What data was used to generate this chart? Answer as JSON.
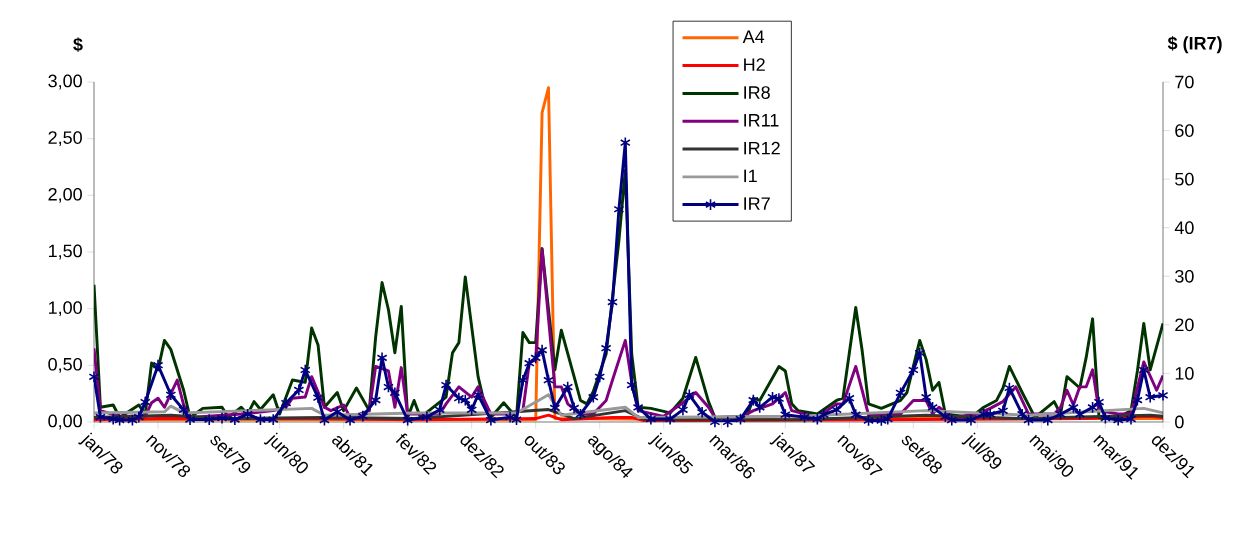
{
  "chart_data": {
    "type": "line",
    "ylabel": "$",
    "y2label": "$ (IR7)",
    "xlim": [
      "1978-01",
      "1991-12"
    ],
    "xticks": [
      {
        "value": "1978-01",
        "label": "jan/78"
      },
      {
        "value": "1978-11",
        "label": "nov/78"
      },
      {
        "value": "1979-09",
        "label": "set/79"
      },
      {
        "value": "1980-06",
        "label": "jun/80"
      },
      {
        "value": "1981-04",
        "label": "abr/81"
      },
      {
        "value": "1982-02",
        "label": "fev/82"
      },
      {
        "value": "1982-12",
        "label": "dez/82"
      },
      {
        "value": "1983-10",
        "label": "out/83"
      },
      {
        "value": "1984-08",
        "label": "ago/84"
      },
      {
        "value": "1985-06",
        "label": "jun/85"
      },
      {
        "value": "1986-03",
        "label": "mar/86"
      },
      {
        "value": "1987-01",
        "label": "jan/87"
      },
      {
        "value": "1987-11",
        "label": "nov/87"
      },
      {
        "value": "1988-09",
        "label": "set/88"
      },
      {
        "value": "1989-07",
        "label": "jul/89"
      },
      {
        "value": "1990-05",
        "label": "mai/90"
      },
      {
        "value": "1991-03",
        "label": "mar/91"
      },
      {
        "value": "1991-12",
        "label": "dez/91"
      }
    ],
    "ylim": [
      0,
      3
    ],
    "yticks": [
      {
        "value": 0,
        "label": "0,00"
      },
      {
        "value": 0.5,
        "label": "0,50"
      },
      {
        "value": 1,
        "label": "1,00"
      },
      {
        "value": 1.5,
        "label": "1,50"
      },
      {
        "value": 2,
        "label": "2,00"
      },
      {
        "value": 2.5,
        "label": "2,50"
      },
      {
        "value": 3,
        "label": "3,00"
      }
    ],
    "y2lim": [
      0,
      70
    ],
    "y2ticks": [
      0,
      10,
      20,
      30,
      40,
      50,
      60,
      70
    ],
    "legend": "top",
    "series": [
      {
        "name": "A4",
        "color": "#ff6600",
        "x": [
          "1978-01",
          "1980-07",
          "1983-01",
          "1983-10",
          "1983-11",
          "1983-12",
          "1984-01",
          "1986-05",
          "1988-11",
          "1991-12"
        ],
        "values": [
          0.02,
          0.02,
          0.02,
          0.02,
          2.73,
          2.95,
          0.03,
          0.02,
          0.03,
          0.03
        ]
      },
      {
        "name": "H2",
        "color": "#ff0000",
        "x": [
          "1978-01",
          "1978-11",
          "1980-11",
          "1982-03",
          "1983-10",
          "1983-12",
          "1984-02",
          "1984-10",
          "1985-01",
          "1985-03",
          "1988-01",
          "1990-12",
          "1991-10",
          "1991-12"
        ],
        "values": [
          0.02,
          0.03,
          0.03,
          0.02,
          0.03,
          0.06,
          0.02,
          0.04,
          0.04,
          0.01,
          0.02,
          0.03,
          0.05,
          0.04
        ]
      },
      {
        "name": "IR8",
        "color": "#003300",
        "x": [
          "1978-01",
          "1978-02",
          "1978-04",
          "1978-05",
          "1978-08",
          "1978-09",
          "1978-10",
          "1978-11",
          "1978-12",
          "1979-01",
          "1979-03",
          "1979-04",
          "1979-06",
          "1979-09",
          "1979-10",
          "1979-12",
          "1980-01",
          "1980-02",
          "1980-03",
          "1980-05",
          "1980-06",
          "1980-08",
          "1980-10",
          "1980-11",
          "1980-12",
          "1981-01",
          "1981-03",
          "1981-04",
          "1981-06",
          "1981-08",
          "1981-09",
          "1981-10",
          "1981-11",
          "1981-12",
          "1982-01",
          "1982-02",
          "1982-03",
          "1982-04",
          "1982-06",
          "1982-08",
          "1982-09",
          "1982-10",
          "1982-11",
          "1983-01",
          "1983-02",
          "1983-03",
          "1983-05",
          "1983-07",
          "1983-08",
          "1983-09",
          "1983-10",
          "1983-11",
          "1984-01",
          "1984-02",
          "1984-04",
          "1984-05",
          "1984-06",
          "1984-07",
          "1984-09",
          "1984-11",
          "1984-12",
          "1985-01",
          "1985-02",
          "1985-04",
          "1985-07",
          "1985-09",
          "1985-11",
          "1986-01",
          "1986-02",
          "1986-07",
          "1986-08",
          "1986-09",
          "1986-12",
          "1987-01",
          "1987-02",
          "1987-03",
          "1987-06",
          "1987-09",
          "1987-10",
          "1987-12",
          "1988-01",
          "1988-02",
          "1988-04",
          "1988-07",
          "1988-08",
          "1988-10",
          "1988-11",
          "1988-12",
          "1989-01",
          "1989-02",
          "1989-06",
          "1989-08",
          "1989-10",
          "1989-11",
          "1989-12",
          "1990-02",
          "1990-04",
          "1990-07",
          "1990-08",
          "1990-09",
          "1990-11",
          "1990-12",
          "1991-01",
          "1991-02",
          "1991-05",
          "1991-07",
          "1991-08",
          "1991-09",
          "1991-10",
          "1991-12"
        ],
        "values": [
          1.21,
          0.13,
          0.15,
          0.04,
          0.15,
          0.07,
          0.52,
          0.46,
          0.72,
          0.64,
          0.28,
          0.04,
          0.12,
          0.13,
          0.04,
          0.13,
          0.07,
          0.18,
          0.11,
          0.24,
          0.07,
          0.37,
          0.35,
          0.83,
          0.68,
          0.13,
          0.26,
          0.1,
          0.3,
          0.1,
          0.75,
          1.23,
          0.99,
          0.61,
          1.02,
          0.04,
          0.19,
          0.04,
          0.13,
          0.22,
          0.61,
          0.7,
          1.28,
          0.4,
          0.16,
          0.04,
          0.17,
          0.04,
          0.79,
          0.7,
          0.7,
          1.53,
          0.46,
          0.81,
          0.4,
          0.19,
          0.16,
          0.27,
          0.6,
          1.6,
          2.22,
          0.6,
          0.13,
          0.12,
          0.08,
          0.21,
          0.57,
          0.18,
          0.04,
          0.05,
          0.21,
          0.19,
          0.49,
          0.45,
          0.16,
          0.1,
          0.07,
          0.19,
          0.21,
          1.01,
          0.63,
          0.16,
          0.12,
          0.19,
          0.26,
          0.72,
          0.55,
          0.28,
          0.35,
          0.07,
          0.04,
          0.13,
          0.19,
          0.3,
          0.49,
          0.26,
          0.04,
          0.18,
          0.07,
          0.4,
          0.3,
          0.57,
          0.91,
          0.04,
          0.04,
          0.1,
          0.45,
          0.87,
          0.46,
          0.87
        ]
      },
      {
        "name": "IR11",
        "color": "#800080",
        "x": [
          "1978-01",
          "1978-02",
          "1978-05",
          "1978-09",
          "1978-10",
          "1978-11",
          "1978-12",
          "1979-02",
          "1979-03",
          "1979-04",
          "1979-12",
          "1980-05",
          "1980-07",
          "1980-08",
          "1980-10",
          "1980-11",
          "1981-01",
          "1981-02",
          "1981-04",
          "1981-05",
          "1981-08",
          "1981-09",
          "1981-11",
          "1981-12",
          "1982-01",
          "1982-02",
          "1982-05",
          "1982-07",
          "1982-08",
          "1982-10",
          "1982-12",
          "1983-01",
          "1983-03",
          "1983-06",
          "1983-08",
          "1983-09",
          "1983-10",
          "1983-11",
          "1984-01",
          "1984-02",
          "1984-03",
          "1984-05",
          "1984-07",
          "1984-09",
          "1984-10",
          "1984-12",
          "1985-01",
          "1985-02",
          "1985-06",
          "1985-09",
          "1985-11",
          "1986-01",
          "1986-02",
          "1986-06",
          "1986-08",
          "1986-11",
          "1987-01",
          "1987-02",
          "1987-06",
          "1987-09",
          "1987-10",
          "1987-12",
          "1988-01",
          "1988-02",
          "1988-07",
          "1988-09",
          "1988-11",
          "1988-12",
          "1989-01",
          "1989-03",
          "1989-07",
          "1989-09",
          "1989-11",
          "1990-01",
          "1990-03",
          "1990-07",
          "1990-08",
          "1990-09",
          "1990-10",
          "1990-11",
          "1990-12",
          "1991-01",
          "1991-02",
          "1991-05",
          "1991-07",
          "1991-09",
          "1991-11",
          "1991-12"
        ],
        "values": [
          0.65,
          0.1,
          0.05,
          0.05,
          0.17,
          0.21,
          0.13,
          0.37,
          0.15,
          0.04,
          0.07,
          0.1,
          0.13,
          0.21,
          0.22,
          0.4,
          0.13,
          0.1,
          0.15,
          0.04,
          0.1,
          0.49,
          0.45,
          0.13,
          0.48,
          0.07,
          0.07,
          0.07,
          0.16,
          0.31,
          0.22,
          0.31,
          0.07,
          0.07,
          0.1,
          0.52,
          0.55,
          1.52,
          0.31,
          0.31,
          0.16,
          0.07,
          0.07,
          0.19,
          0.37,
          0.72,
          0.35,
          0.1,
          0.05,
          0.17,
          0.26,
          0.13,
          0.04,
          0.04,
          0.1,
          0.16,
          0.26,
          0.1,
          0.04,
          0.16,
          0.16,
          0.49,
          0.28,
          0.06,
          0.07,
          0.19,
          0.19,
          0.07,
          0.13,
          0.04,
          0.07,
          0.12,
          0.18,
          0.31,
          0.07,
          0.07,
          0.13,
          0.28,
          0.15,
          0.31,
          0.31,
          0.46,
          0.1,
          0.07,
          0.07,
          0.53,
          0.28,
          0.41
        ]
      },
      {
        "name": "IR12",
        "color": "#333333",
        "x": [
          "1978-01",
          "1979-01",
          "1979-09",
          "1981-01",
          "1982-03",
          "1983-12",
          "1984-04",
          "1984-12",
          "1985-03",
          "1987-03",
          "1988-11",
          "1990-02",
          "1991-10",
          "1991-12"
        ],
        "values": [
          0.04,
          0.06,
          0.03,
          0.04,
          0.03,
          0.11,
          0.03,
          0.1,
          0.02,
          0.02,
          0.06,
          0.03,
          0.06,
          0.05
        ]
      },
      {
        "name": "I1",
        "color": "#999999",
        "x": [
          "1978-01",
          "1978-12",
          "1979-01",
          "1979-03",
          "1980-11",
          "1981-01",
          "1982-03",
          "1983-07",
          "1983-12",
          "1984-02",
          "1984-12",
          "1985-02",
          "1987-03",
          "1988-11",
          "1990-03",
          "1991-09",
          "1991-12"
        ],
        "values": [
          0.08,
          0.09,
          0.14,
          0.08,
          0.12,
          0.06,
          0.08,
          0.08,
          0.24,
          0.06,
          0.13,
          0.04,
          0.05,
          0.1,
          0.06,
          0.12,
          0.08
        ]
      },
      {
        "name": "IR7",
        "color": "#000080",
        "axis": "y2",
        "marker": "cross",
        "x": [
          "1978-01",
          "1978-02",
          "1978-04",
          "1978-05",
          "1978-07",
          "1978-08",
          "1978-09",
          "1978-11",
          "1979-01",
          "1979-03",
          "1979-04",
          "1979-07",
          "1979-09",
          "1979-11",
          "1980-01",
          "1980-03",
          "1980-05",
          "1980-07",
          "1980-09",
          "1980-10",
          "1980-12",
          "1981-01",
          "1981-03",
          "1981-05",
          "1981-07",
          "1981-09",
          "1981-10",
          "1981-11",
          "1981-12",
          "1982-02",
          "1982-05",
          "1982-07",
          "1982-08",
          "1982-10",
          "1982-11",
          "1982-12",
          "1983-01",
          "1983-03",
          "1983-06",
          "1983-07",
          "1983-08",
          "1983-09",
          "1983-10",
          "1983-11",
          "1983-12",
          "1984-01",
          "1984-03",
          "1984-04",
          "1984-05",
          "1984-07",
          "1984-08",
          "1984-09",
          "1984-10",
          "1984-11",
          "1984-12",
          "1985-01",
          "1985-02",
          "1985-04",
          "1985-07",
          "1985-09",
          "1985-10",
          "1985-12",
          "1986-02",
          "1986-04",
          "1986-06",
          "1986-08",
          "1986-09",
          "1986-11",
          "1986-12",
          "1987-01",
          "1987-04",
          "1987-06",
          "1987-07",
          "1987-09",
          "1987-11",
          "1987-12",
          "1988-02",
          "1988-04",
          "1988-05",
          "1988-07",
          "1988-09",
          "1988-10",
          "1988-11",
          "1988-12",
          "1989-02",
          "1989-03",
          "1989-06",
          "1989-08",
          "1989-09",
          "1989-11",
          "1989-12",
          "1990-02",
          "1990-03",
          "1990-06",
          "1990-08",
          "1990-10",
          "1990-11",
          "1991-01",
          "1991-02",
          "1991-03",
          "1991-05",
          "1991-07",
          "1991-08",
          "1991-09",
          "1991-10",
          "1991-12"
        ],
        "values": [
          9.3,
          1,
          0.6,
          0.4,
          0.4,
          1,
          4.1,
          11.7,
          5.6,
          2.5,
          0.5,
          0.5,
          0.8,
          0.5,
          1.6,
          0.5,
          0.5,
          3.9,
          6.6,
          10.7,
          5,
          0.4,
          2.1,
          0.4,
          1.2,
          4.5,
          13.2,
          7.2,
          6,
          0.4,
          1,
          2.5,
          7.6,
          4.9,
          4.5,
          2.5,
          5.6,
          0.4,
          1,
          0.5,
          8.6,
          12.1,
          13.2,
          14.8,
          8.6,
          2.9,
          7.2,
          2.9,
          1.6,
          5.1,
          9.3,
          15.2,
          24.7,
          43.8,
          57.5,
          7.6,
          3,
          0.6,
          0.6,
          2.5,
          5.6,
          2,
          0,
          0,
          0.6,
          4.5,
          3,
          5.1,
          4.8,
          1.5,
          1,
          0.6,
          1.5,
          2.5,
          4.9,
          1.5,
          0.3,
          0.3,
          0.6,
          6,
          10.7,
          14.2,
          5.1,
          3,
          1.1,
          0.4,
          0.4,
          1.6,
          1.6,
          2.3,
          7,
          1.6,
          0.4,
          0.4,
          1.6,
          3,
          1.6,
          3,
          4.1,
          0.8,
          0.4,
          0.6,
          4.5,
          10.7,
          5.1,
          5.5
        ]
      }
    ]
  }
}
